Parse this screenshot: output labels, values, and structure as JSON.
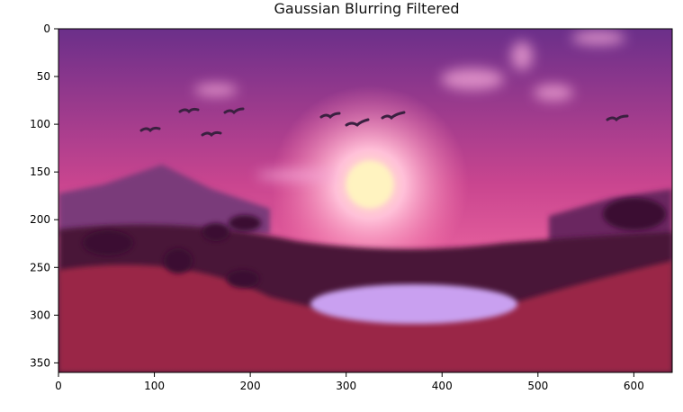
{
  "chart_data": {
    "type": "image",
    "title": "Gaussian Blurring Filtered",
    "xlabel": "",
    "ylabel": "",
    "xlim": [
      0,
      640
    ],
    "ylim": [
      360,
      0
    ],
    "x_ticks": [
      0,
      100,
      200,
      300,
      400,
      500,
      600
    ],
    "y_ticks": [
      0,
      50,
      100,
      150,
      200,
      250,
      300,
      350
    ],
    "image_content": "blurred sunset landscape: magenta-pink sky, glowing sun, flying birds, hills, a small lake",
    "colors": {
      "sky_top": "#6b2f8a",
      "sky_mid": "#c9458f",
      "sun": "#fff3c0",
      "horizon": "#e05a9a",
      "ground_dark": "#4a1838",
      "ground_red": "#9a2846",
      "lake": "#c9a0f0"
    }
  }
}
